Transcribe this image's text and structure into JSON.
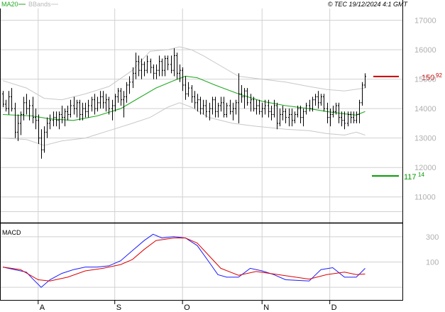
{
  "header": {
    "ma_label": "MA20",
    "bb_label": "BBands",
    "copyright": "© TEC 19/12/2024 4:1 GMT"
  },
  "colors": {
    "ma": "#22aa22",
    "bbands": "#c8c8c8",
    "price": "#000000",
    "grid": "#d0d0d0",
    "upper_level": "#cc0000",
    "lower_level": "#009900",
    "macd": "#1a1aff",
    "signal": "#dd0000",
    "text_muted": "#b0b0b0"
  },
  "chart_data": [
    {
      "type": "ohlc",
      "ylim": [
        10150,
        17400
      ],
      "yticks": [
        11000,
        12000,
        13000,
        14000,
        15000,
        16000,
        17000
      ],
      "ytick_labels": [
        "11000",
        "12000",
        "13000",
        "14000",
        "15000",
        "16000",
        "17000"
      ],
      "x_months": [
        {
          "label": "A",
          "index": 12
        },
        {
          "label": "S",
          "index": 38
        },
        {
          "label": "O",
          "index": 61
        },
        {
          "label": "N",
          "index": 88
        },
        {
          "label": "D",
          "index": 111
        }
      ],
      "n_bars": 124,
      "ohlc": [
        [
          14500,
          14600,
          14050,
          14150
        ],
        [
          14150,
          14300,
          13900,
          14000
        ],
        [
          14000,
          14600,
          13800,
          14400
        ],
        [
          14400,
          14700,
          13900,
          14000
        ],
        [
          14000,
          14200,
          13000,
          13200
        ],
        [
          13200,
          13800,
          12900,
          13500
        ],
        [
          13500,
          13900,
          13100,
          13800
        ],
        [
          13800,
          14400,
          13600,
          14200
        ],
        [
          14200,
          14500,
          13800,
          14000
        ],
        [
          14000,
          14300,
          13600,
          14100
        ],
        [
          14100,
          14400,
          13500,
          13700
        ],
        [
          13700,
          14000,
          13300,
          13600
        ],
        [
          13600,
          13800,
          12800,
          13000
        ],
        [
          13000,
          13300,
          12300,
          12600
        ],
        [
          12600,
          13400,
          12500,
          13200
        ],
        [
          13200,
          13700,
          13000,
          13500
        ],
        [
          13500,
          13800,
          13300,
          13600
        ],
        [
          13600,
          13900,
          13400,
          13700
        ],
        [
          13700,
          13900,
          13400,
          13600
        ],
        [
          13600,
          13900,
          13300,
          13800
        ],
        [
          13800,
          14100,
          13500,
          13700
        ],
        [
          13700,
          14000,
          13400,
          13900
        ],
        [
          13900,
          14100,
          13600,
          13800
        ],
        [
          13800,
          14300,
          13700,
          14100
        ],
        [
          14100,
          14400,
          13800,
          14000
        ],
        [
          14000,
          14300,
          13700,
          14200
        ],
        [
          14200,
          14300,
          13600,
          13800
        ],
        [
          13800,
          14200,
          13600,
          14000
        ],
        [
          14000,
          14200,
          13700,
          13900
        ],
        [
          13900,
          14300,
          13700,
          14100
        ],
        [
          14100,
          14400,
          13900,
          14300
        ],
        [
          14300,
          14500,
          13800,
          14000
        ],
        [
          14000,
          14400,
          13900,
          14200
        ],
        [
          14200,
          14600,
          14000,
          14400
        ],
        [
          14400,
          14600,
          14000,
          14200
        ],
        [
          14200,
          14500,
          13900,
          14300
        ],
        [
          14300,
          14400,
          13800,
          14000
        ],
        [
          14000,
          14300,
          13600,
          14100
        ],
        [
          14100,
          14500,
          13900,
          14400
        ],
        [
          14400,
          14700,
          14200,
          14600
        ],
        [
          14600,
          14700,
          14100,
          14300
        ],
        [
          14300,
          14600,
          13700,
          14400
        ],
        [
          14400,
          14900,
          14200,
          14800
        ],
        [
          14800,
          15100,
          14500,
          14900
        ],
        [
          14900,
          15400,
          14700,
          15200
        ],
        [
          15200,
          15900,
          15000,
          15600
        ],
        [
          15600,
          15800,
          15100,
          15300
        ],
        [
          15300,
          15700,
          15000,
          15500
        ],
        [
          15500,
          15600,
          15100,
          15300
        ],
        [
          15300,
          15800,
          15200,
          15600
        ],
        [
          15600,
          15700,
          15200,
          15400
        ],
        [
          15400,
          15500,
          15000,
          15200
        ],
        [
          15200,
          15500,
          15000,
          15300
        ],
        [
          15300,
          15800,
          15100,
          15600
        ],
        [
          15600,
          15700,
          15100,
          15300
        ],
        [
          15300,
          15800,
          15100,
          15700
        ],
        [
          15700,
          15800,
          15300,
          15500
        ],
        [
          15500,
          15800,
          15200,
          15300
        ],
        [
          15300,
          16050,
          15100,
          15800
        ],
        [
          15800,
          15900,
          15000,
          15200
        ],
        [
          15200,
          15500,
          14900,
          15300
        ],
        [
          15300,
          15400,
          14600,
          14800
        ],
        [
          14800,
          15100,
          14300,
          14500
        ],
        [
          14500,
          14900,
          14400,
          14700
        ],
        [
          14700,
          14800,
          14200,
          14400
        ],
        [
          14400,
          14600,
          14000,
          14200
        ],
        [
          14200,
          14500,
          13900,
          14300
        ],
        [
          14300,
          14400,
          13800,
          14000
        ],
        [
          14000,
          14300,
          13800,
          14100
        ],
        [
          14100,
          14300,
          13700,
          13900
        ],
        [
          13900,
          14200,
          13600,
          14000
        ],
        [
          14000,
          14400,
          13800,
          14300
        ],
        [
          14300,
          14400,
          13700,
          13900
        ],
        [
          13900,
          14200,
          13700,
          14100
        ],
        [
          14100,
          14400,
          13900,
          14200
        ],
        [
          14200,
          14400,
          13700,
          13800
        ],
        [
          13800,
          14200,
          13700,
          14100
        ],
        [
          14100,
          14300,
          13800,
          13900
        ],
        [
          13900,
          14200,
          13600,
          14000
        ],
        [
          14000,
          14300,
          13800,
          14200
        ],
        [
          14200,
          15200,
          13500,
          14500
        ],
        [
          14500,
          14800,
          14200,
          14400
        ],
        [
          14400,
          14700,
          14000,
          14600
        ],
        [
          14600,
          14700,
          14100,
          14200
        ],
        [
          14200,
          14500,
          13900,
          14300
        ],
        [
          14300,
          14400,
          13900,
          14000
        ],
        [
          14000,
          14300,
          13800,
          14100
        ],
        [
          14100,
          14300,
          13800,
          13900
        ],
        [
          13900,
          14200,
          13700,
          14000
        ],
        [
          14000,
          14300,
          13800,
          14100
        ],
        [
          14100,
          14300,
          13700,
          13900
        ],
        [
          13900,
          14100,
          13600,
          13800
        ],
        [
          13800,
          14300,
          13700,
          14100
        ],
        [
          14100,
          14200,
          13300,
          13500
        ],
        [
          13500,
          14000,
          13400,
          13800
        ],
        [
          13800,
          14100,
          13600,
          13900
        ],
        [
          13900,
          14000,
          13500,
          13700
        ],
        [
          13700,
          14000,
          13400,
          13800
        ],
        [
          13800,
          14000,
          13400,
          13600
        ],
        [
          13600,
          13900,
          13500,
          13800
        ],
        [
          13800,
          14100,
          13700,
          14000
        ],
        [
          14000,
          14100,
          13500,
          13700
        ],
        [
          13700,
          14000,
          13400,
          13900
        ],
        [
          13900,
          14200,
          13800,
          14100
        ],
        [
          14100,
          14300,
          13900,
          14000
        ],
        [
          14000,
          14400,
          13900,
          14300
        ],
        [
          14300,
          14500,
          14100,
          14400
        ],
        [
          14400,
          14600,
          14000,
          14200
        ],
        [
          14200,
          14500,
          14100,
          14400
        ],
        [
          14400,
          14500,
          13900,
          14000
        ],
        [
          14000,
          14200,
          13500,
          13700
        ],
        [
          13700,
          14000,
          13400,
          13800
        ],
        [
          13800,
          14100,
          13700,
          13900
        ],
        [
          13900,
          14200,
          13800,
          14100
        ],
        [
          14100,
          14200,
          13500,
          13700
        ],
        [
          13700,
          13900,
          13400,
          13600
        ],
        [
          13600,
          13900,
          13300,
          13500
        ],
        [
          13500,
          13900,
          13400,
          13800
        ],
        [
          13800,
          13900,
          13500,
          13700
        ],
        [
          13700,
          13900,
          13500,
          13600
        ],
        [
          13600,
          13900,
          13500,
          13800
        ],
        [
          13800,
          14300,
          13500,
          14200
        ],
        [
          14200,
          14900,
          14100,
          14800
        ],
        [
          14800,
          15200,
          14700,
          15092
        ]
      ],
      "ma20": [
        [
          0,
          13800
        ],
        [
          10,
          13750
        ],
        [
          16,
          13650
        ],
        [
          24,
          13600
        ],
        [
          32,
          13750
        ],
        [
          40,
          14000
        ],
        [
          46,
          14350
        ],
        [
          52,
          14700
        ],
        [
          58,
          14950
        ],
        [
          62,
          15100
        ],
        [
          66,
          15050
        ],
        [
          72,
          14800
        ],
        [
          80,
          14500
        ],
        [
          88,
          14250
        ],
        [
          96,
          14100
        ],
        [
          104,
          14000
        ],
        [
          110,
          13900
        ],
        [
          116,
          13820
        ],
        [
          120,
          13780
        ],
        [
          123,
          13900
        ]
      ],
      "bb_upper": [
        [
          0,
          14950
        ],
        [
          8,
          14700
        ],
        [
          14,
          14350
        ],
        [
          20,
          14300
        ],
        [
          28,
          14500
        ],
        [
          36,
          14750
        ],
        [
          44,
          15300
        ],
        [
          50,
          15950
        ],
        [
          56,
          16000
        ],
        [
          60,
          16100
        ],
        [
          64,
          16000
        ],
        [
          68,
          15800
        ],
        [
          74,
          15450
        ],
        [
          80,
          15100
        ],
        [
          88,
          15000
        ],
        [
          96,
          14900
        ],
        [
          104,
          14750
        ],
        [
          110,
          14650
        ],
        [
          116,
          14600
        ],
        [
          123,
          14700
        ]
      ],
      "bb_lower": [
        [
          0,
          13000
        ],
        [
          8,
          12950
        ],
        [
          14,
          12750
        ],
        [
          20,
          12900
        ],
        [
          28,
          13000
        ],
        [
          36,
          13250
        ],
        [
          44,
          13500
        ],
        [
          50,
          13700
        ],
        [
          56,
          14050
        ],
        [
          60,
          14200
        ],
        [
          64,
          14050
        ],
        [
          70,
          13700
        ],
        [
          78,
          13500
        ],
        [
          86,
          13400
        ],
        [
          96,
          13300
        ],
        [
          104,
          13250
        ],
        [
          110,
          13150
        ],
        [
          116,
          13100
        ],
        [
          120,
          13200
        ],
        [
          123,
          13100
        ]
      ],
      "levels": [
        {
          "name": "resistance",
          "value": 15092,
          "int_label": "150",
          "frac_label": "92",
          "color": "#cc0000"
        },
        {
          "name": "support",
          "value": 11714,
          "int_label": "117",
          "frac_label": "14",
          "color": "#009900"
        }
      ]
    },
    {
      "type": "line",
      "title": "MACD",
      "ylim": [
        -200,
        400
      ],
      "yticks": [
        100,
        300
      ],
      "ytick_labels": [
        "100",
        "300"
      ],
      "series": [
        {
          "color": "#1a1aff",
          "points": [
            [
              0,
              60
            ],
            [
              4,
              40
            ],
            [
              8,
              20
            ],
            [
              10,
              -30
            ],
            [
              13,
              -100
            ],
            [
              16,
              -40
            ],
            [
              20,
              10
            ],
            [
              24,
              40
            ],
            [
              28,
              60
            ],
            [
              32,
              60
            ],
            [
              36,
              70
            ],
            [
              40,
              110
            ],
            [
              44,
              190
            ],
            [
              48,
              270
            ],
            [
              51,
              320
            ],
            [
              54,
              290
            ],
            [
              58,
              300
            ],
            [
              62,
              290
            ],
            [
              66,
              230
            ],
            [
              70,
              100
            ],
            [
              73,
              0
            ],
            [
              76,
              -20
            ],
            [
              80,
              -20
            ],
            [
              84,
              50
            ],
            [
              88,
              30
            ],
            [
              92,
              0
            ],
            [
              96,
              -40
            ],
            [
              100,
              -45
            ],
            [
              104,
              -50
            ],
            [
              108,
              40
            ],
            [
              112,
              55
            ],
            [
              116,
              -20
            ],
            [
              120,
              -20
            ],
            [
              123,
              50
            ]
          ]
        },
        {
          "color": "#dd0000",
          "points": [
            [
              0,
              60
            ],
            [
              6,
              40
            ],
            [
              12,
              -40
            ],
            [
              16,
              -50
            ],
            [
              22,
              -20
            ],
            [
              28,
              30
            ],
            [
              34,
              50
            ],
            [
              40,
              80
            ],
            [
              44,
              120
            ],
            [
              48,
              200
            ],
            [
              52,
              270
            ],
            [
              58,
              290
            ],
            [
              62,
              290
            ],
            [
              66,
              250
            ],
            [
              70,
              150
            ],
            [
              74,
              50
            ],
            [
              80,
              -5
            ],
            [
              86,
              25
            ],
            [
              92,
              5
            ],
            [
              98,
              -15
            ],
            [
              104,
              -35
            ],
            [
              110,
              0
            ],
            [
              116,
              20
            ],
            [
              120,
              0
            ],
            [
              123,
              5
            ]
          ]
        }
      ]
    }
  ]
}
